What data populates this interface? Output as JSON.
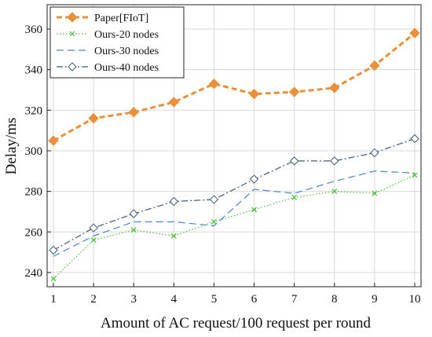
{
  "chart_data": {
    "type": "line",
    "title": "",
    "xlabel": "Amount of AC request/100 request per round",
    "ylabel": "Delay/ms",
    "x": [
      1,
      2,
      3,
      4,
      5,
      6,
      7,
      8,
      9,
      10
    ],
    "xlim": [
      1,
      10
    ],
    "ylim": [
      233,
      372
    ],
    "yticks": [
      240,
      260,
      280,
      300,
      320,
      340,
      360
    ],
    "grid": true,
    "legend_position": "top-left",
    "series": [
      {
        "name": "Paper[FIoT]",
        "color": "#E8913A",
        "marker": "diamond-filled",
        "style": "dashed-thick",
        "values": [
          305,
          316,
          319,
          324,
          333,
          328,
          329,
          331,
          342,
          358
        ]
      },
      {
        "name": "Ours-20 nodes",
        "color": "#4DBD3A",
        "marker": "x",
        "style": "dotted",
        "values": [
          237,
          256,
          261,
          258,
          265,
          271,
          277,
          280,
          279,
          288
        ]
      },
      {
        "name": "Ours-30 nodes",
        "color": "#4A86C9",
        "marker": "none",
        "style": "dashed",
        "values": [
          248,
          258,
          265,
          265,
          263,
          281,
          279,
          285,
          290,
          289
        ]
      },
      {
        "name": "Ours-40 nodes",
        "color": "#3F5A78",
        "marker": "diamond-open",
        "style": "dashdot",
        "values": [
          251,
          262,
          269,
          275,
          276,
          286,
          295,
          295,
          299,
          306
        ]
      }
    ]
  }
}
